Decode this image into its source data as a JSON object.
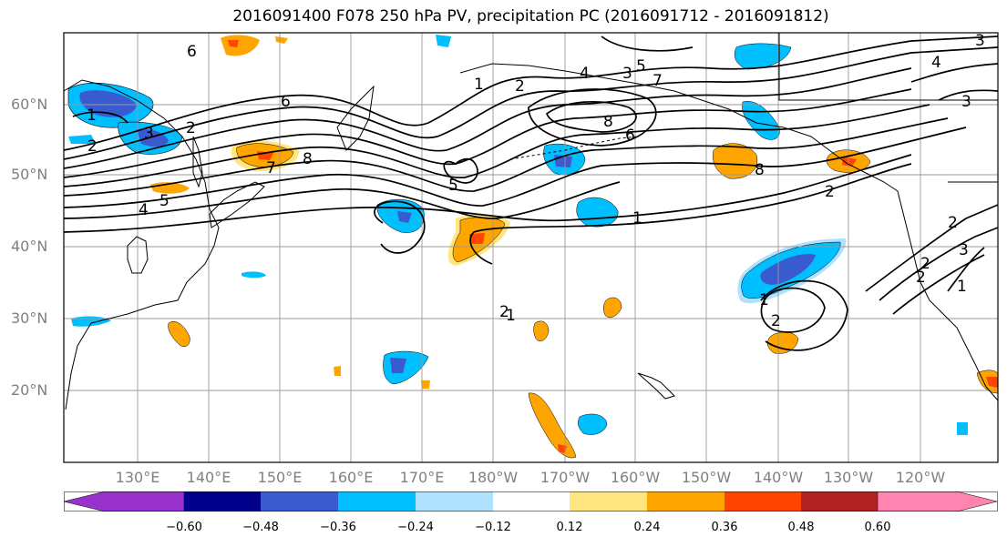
{
  "title": "2016091400 F078 250 hPa PV, precipitation PC (2016091712 - 2016091812)",
  "lat_labels": [
    "60°N",
    "50°N",
    "40°N",
    "30°N",
    "20°N"
  ],
  "lon_labels": [
    "130°E",
    "140°E",
    "150°E",
    "160°E",
    "170°E",
    "180°W",
    "170°W",
    "160°W",
    "150°W",
    "140°W",
    "130°W",
    "120°W"
  ],
  "colorbar": {
    "ticks": [
      "−0.60",
      "−0.48",
      "−0.36",
      "−0.24",
      "−0.12",
      "0.12",
      "0.24",
      "0.36",
      "0.48",
      "0.60"
    ],
    "colors": [
      "#9932CC",
      "#00008B",
      "#3A5BD0",
      "#00BFFF",
      "#B0E2FF",
      "#FFFFFF",
      "#FFE680",
      "#FFA500",
      "#FF4500",
      "#B22222",
      "#FF85B0"
    ]
  },
  "contour_labels": [
    "6",
    "1",
    "2",
    "3",
    "4",
    "5",
    "6",
    "7",
    "8",
    "2",
    "1",
    "2",
    "3",
    "4",
    "5",
    "7",
    "8",
    "6",
    "8",
    "5",
    "4",
    "3",
    "2",
    "1",
    "2",
    "1",
    "2",
    "1",
    "2",
    "2",
    "3",
    "3",
    "2",
    "1"
  ]
}
